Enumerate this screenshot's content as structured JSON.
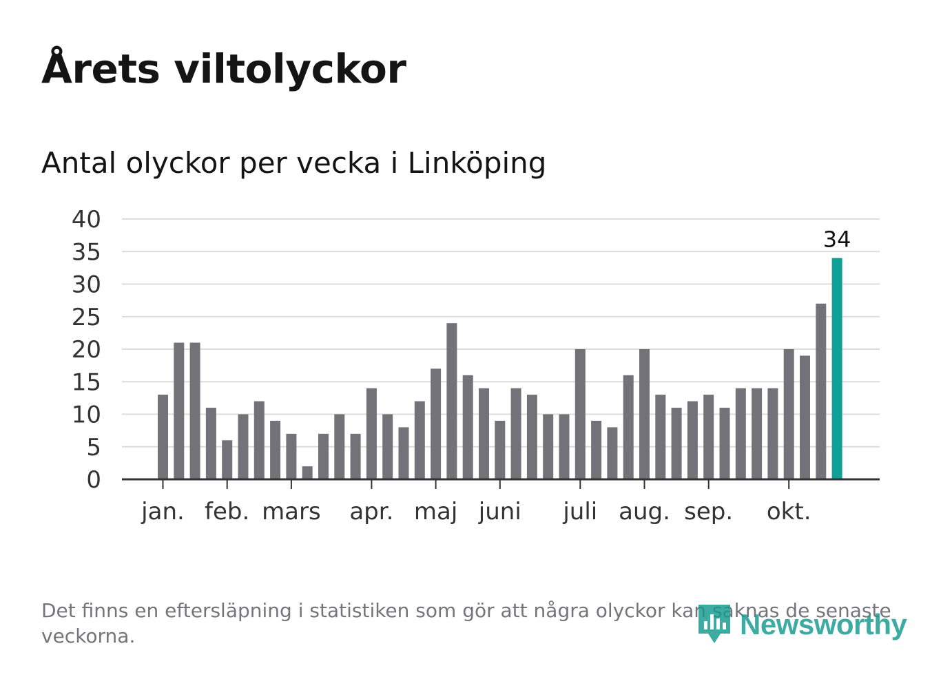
{
  "header": {
    "title": "Årets viltolyckor",
    "subtitle": "Antal olyckor per vecka i Linköping"
  },
  "footer": {
    "note": "Det finns en eftersläpning i statistiken som gör att några olyckor kan saknas de senaste veckorna.",
    "brand": "Newsworthy",
    "brand_icon": "newsworthy-logo-icon"
  },
  "colors": {
    "bar": "#737278",
    "highlight": "#0fa197",
    "grid": "#dcdcdc",
    "axis": "#333333",
    "text": "#333333",
    "brand": "#14998f"
  },
  "chart_data": {
    "type": "bar",
    "title": "Antal olyckor per vecka i Linköping",
    "xlabel": "",
    "ylabel": "",
    "ylim": [
      0,
      40
    ],
    "yticks": [
      0,
      5,
      10,
      15,
      20,
      25,
      30,
      35,
      40
    ],
    "grid": true,
    "values": [
      13,
      21,
      21,
      11,
      6,
      10,
      12,
      9,
      7,
      2,
      7,
      10,
      7,
      14,
      10,
      8,
      12,
      17,
      24,
      16,
      14,
      9,
      14,
      13,
      10,
      10,
      20,
      9,
      8,
      16,
      20,
      13,
      11,
      12,
      13,
      11,
      14,
      14,
      14,
      20,
      19,
      27,
      34
    ],
    "highlight_index": 42,
    "highlight_label": "34",
    "month_ticks": [
      {
        "label": "jan.",
        "bar": 0
      },
      {
        "label": "feb.",
        "bar": 4
      },
      {
        "label": "mars",
        "bar": 8
      },
      {
        "label": "apr.",
        "bar": 13
      },
      {
        "label": "maj",
        "bar": 17
      },
      {
        "label": "juni",
        "bar": 21
      },
      {
        "label": "juli",
        "bar": 26
      },
      {
        "label": "aug.",
        "bar": 30
      },
      {
        "label": "sep.",
        "bar": 34
      },
      {
        "label": "okt.",
        "bar": 39
      }
    ]
  }
}
